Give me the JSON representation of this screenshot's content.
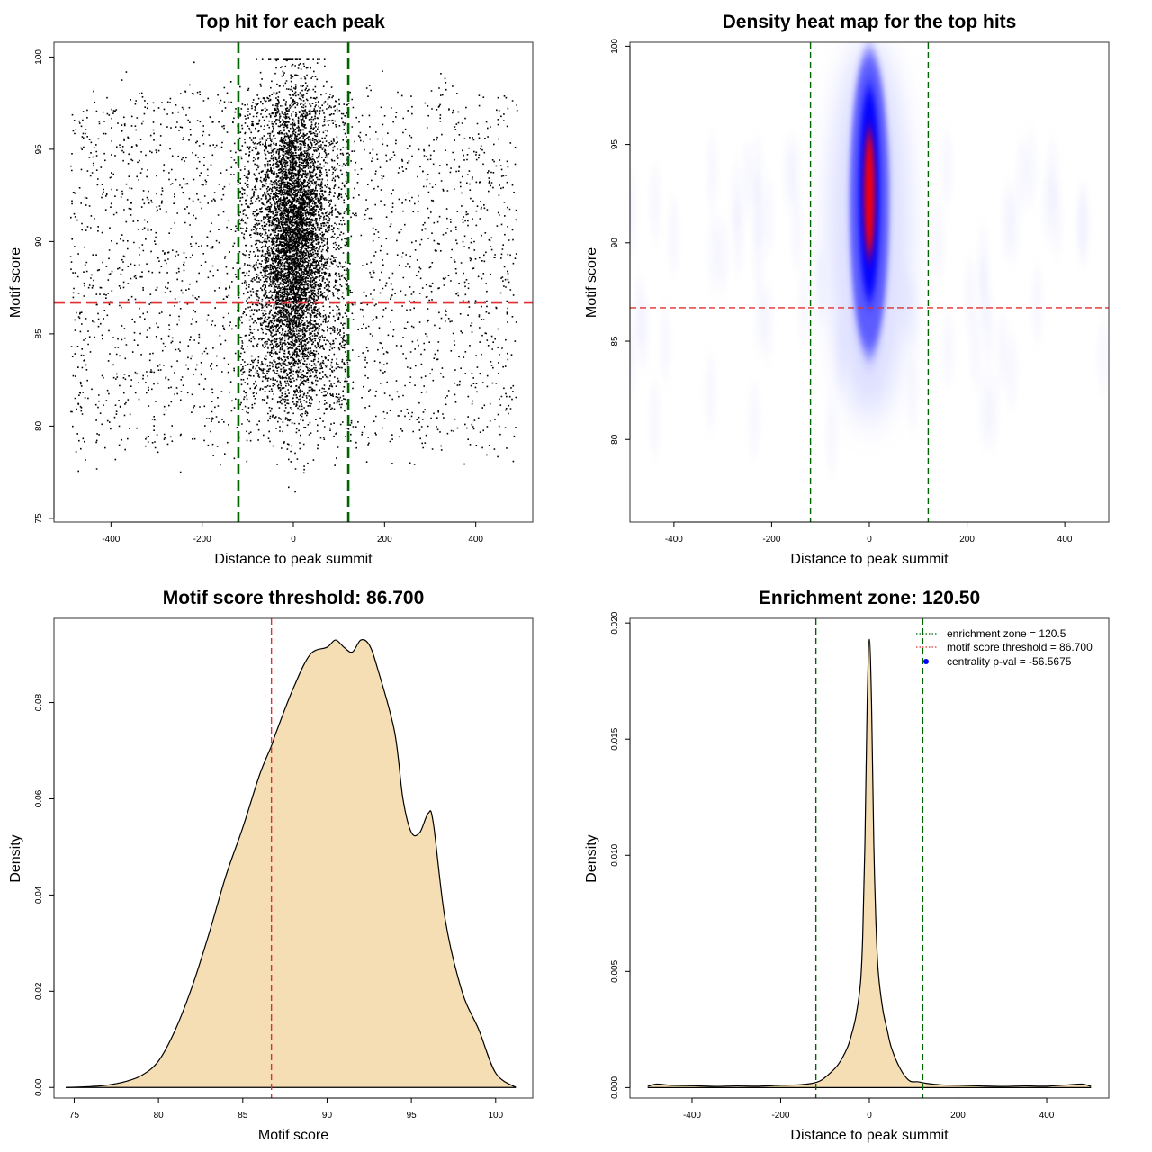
{
  "chart_data": [
    {
      "id": "scatter",
      "type": "scatter",
      "title": "Top hit for each peak",
      "xlabel": "Distance to peak summit",
      "ylabel": "Motif score",
      "xlim": [
        -525,
        525
      ],
      "ylim": [
        74.8,
        100.8
      ],
      "xticks": [
        -400,
        -200,
        0,
        200,
        400
      ],
      "yticks": [
        75,
        80,
        85,
        90,
        95,
        100
      ],
      "vlines": [
        -120.5,
        120.5
      ],
      "hline": 86.7,
      "vline_color": "#006400",
      "hline_color": "#e03030",
      "point_color": "#000000",
      "background_range_x": [
        -490,
        490
      ],
      "background_range_y": [
        79,
        98
      ],
      "core_center": 0,
      "core_spread": 35,
      "core_y_mean": 90,
      "core_y_sd": 4
    },
    {
      "id": "heatmap",
      "type": "heatmap",
      "title": "Density heat map for the top hits",
      "xlabel": "Distance to peak summit",
      "ylabel": "Motif score",
      "xlim": [
        -490,
        490
      ],
      "ylim": [
        75.8,
        100.2
      ],
      "xticks": [
        -400,
        -200,
        0,
        200,
        400
      ],
      "yticks": [
        80,
        85,
        90,
        95,
        100
      ],
      "vlines": [
        -120.5,
        120.5
      ],
      "hline": 86.7,
      "hotspot_x": 0,
      "hotspot_y": 92.5,
      "palette": [
        "#ffffff",
        "#0000ff",
        "#ff0000"
      ]
    },
    {
      "id": "scoredens",
      "type": "area",
      "title": "Motif score threshold: 86.700",
      "xlabel": "Motif score",
      "ylabel": "Density",
      "xlim": [
        73.8,
        102.2
      ],
      "ylim": [
        -0.0022,
        0.0975
      ],
      "xticks": [
        75,
        80,
        85,
        90,
        95,
        100
      ],
      "yticks": [
        0.0,
        0.02,
        0.04,
        0.06,
        0.08
      ],
      "ytick_labels": [
        "0.00",
        "0.02",
        "0.04",
        "0.06",
        "0.08"
      ],
      "threshold": 86.7,
      "fill": "#f5deb3",
      "x": [
        74.5,
        76,
        77,
        78,
        79,
        80,
        81,
        82,
        83,
        84,
        85,
        86,
        86.7,
        87,
        88,
        89,
        90,
        90.5,
        91,
        91.5,
        92,
        92.5,
        93,
        94,
        94.5,
        95,
        95.5,
        96,
        96.3,
        97,
        98,
        99,
        100,
        101.2
      ],
      "y": [
        0,
        0.0002,
        0.0005,
        0.0012,
        0.0025,
        0.0055,
        0.012,
        0.021,
        0.032,
        0.044,
        0.054,
        0.065,
        0.071,
        0.074,
        0.083,
        0.09,
        0.0915,
        0.093,
        0.0915,
        0.0905,
        0.093,
        0.092,
        0.087,
        0.074,
        0.06,
        0.053,
        0.053,
        0.057,
        0.055,
        0.035,
        0.02,
        0.012,
        0.003,
        0
      ]
    },
    {
      "id": "distdens",
      "type": "area",
      "title": "Enrichment zone: 120.50",
      "xlabel": "Distance to peak summit",
      "ylabel": "Density",
      "xlim": [
        -540,
        540
      ],
      "ylim": [
        -0.00045,
        0.0202
      ],
      "xticks": [
        -400,
        -200,
        0,
        200,
        400
      ],
      "yticks": [
        0.0,
        0.005,
        0.01,
        0.015,
        0.02
      ],
      "ytick_labels": [
        "0.000",
        "0.005",
        "0.010",
        "0.015",
        "0.020"
      ],
      "vlines": [
        -120.5,
        120.5
      ],
      "fill": "#f5deb3",
      "x": [
        -500,
        -480,
        -450,
        -400,
        -350,
        -300,
        -250,
        -200,
        -160,
        -130,
        -110,
        -90,
        -70,
        -50,
        -40,
        -30,
        -20,
        -15,
        -10,
        -5,
        0,
        5,
        10,
        15,
        20,
        30,
        40,
        50,
        70,
        90,
        110,
        130,
        160,
        200,
        250,
        300,
        350,
        400,
        450,
        480,
        500
      ],
      "y": [
        5e-05,
        0.00015,
        0.0001,
        8e-05,
        5e-05,
        7e-05,
        6e-05,
        0.0001,
        0.00012,
        0.00018,
        0.0003,
        0.0006,
        0.001,
        0.0017,
        0.0023,
        0.0031,
        0.0045,
        0.0065,
        0.0105,
        0.0165,
        0.0193,
        0.0165,
        0.0105,
        0.007,
        0.005,
        0.0034,
        0.0025,
        0.0017,
        0.0008,
        0.0003,
        0.00025,
        0.00018,
        0.00012,
        0.0001,
        7e-05,
        5e-05,
        7e-05,
        6e-05,
        0.00012,
        0.00015,
        5e-05
      ],
      "legend": {
        "position": "top-right",
        "items": [
          {
            "label": "enrichment zone = 120.5",
            "color": "#006400",
            "style": "dotted-line"
          },
          {
            "label": "motif score threshold = 86.700",
            "color": "#e03030",
            "style": "dotted-line"
          },
          {
            "label": "centrality p-val = -56.5675",
            "color": "#0000ff",
            "style": "point"
          }
        ]
      }
    }
  ]
}
